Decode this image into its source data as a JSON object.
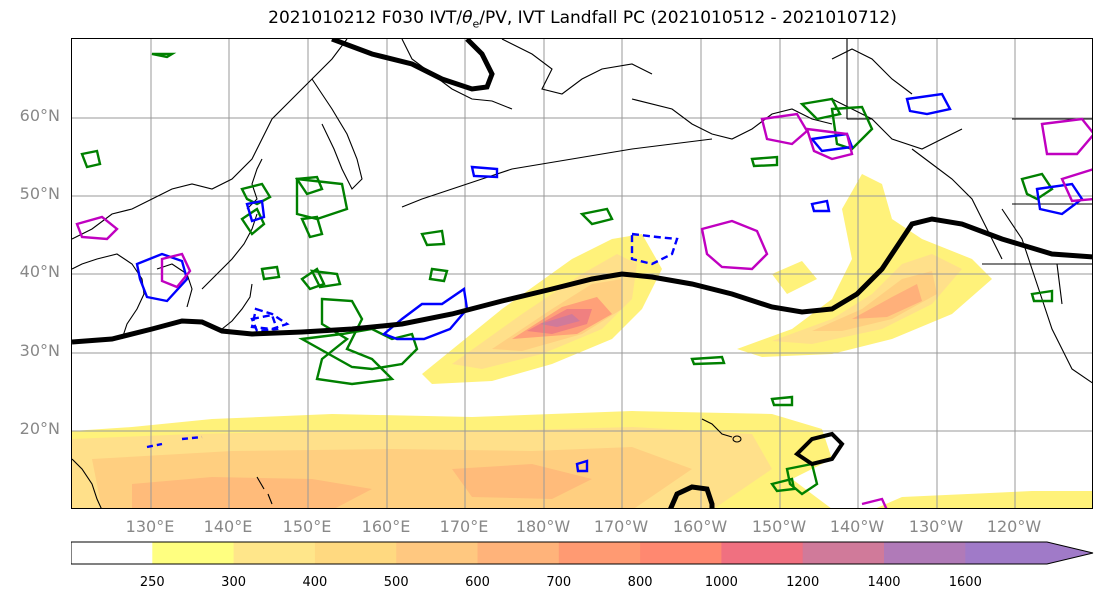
{
  "title": "2021010212 F030 IVT/θe/PV, IVT Landfall PC (2021010512 - 2021010712)",
  "title_parts": {
    "prefix": "2021010212 F030 IVT/",
    "theta": "θ",
    "sub": "e",
    "suffix": "/PV, IVT Landfall PC (2021010512 - 2021010712)"
  },
  "map": {
    "lat_labels": [
      "60°N",
      "50°N",
      "40°N",
      "30°N",
      "20°N"
    ],
    "lon_labels": [
      "130°E",
      "140°E",
      "150°E",
      "160°E",
      "170°E",
      "180°W",
      "170°W",
      "160°W",
      "150°W",
      "140°W",
      "130°W",
      "120°W"
    ],
    "contour_colors": {
      "theta_e_line": "#000000",
      "pv_green": "#008000",
      "pv_blue": "#0000ff",
      "pv_magenta": "#c000c0"
    }
  },
  "colorbar": {
    "levels": [
      "250",
      "300",
      "400",
      "500",
      "600",
      "700",
      "800",
      "1000",
      "1200",
      "1400",
      "1600"
    ],
    "colors": [
      "#ffffff",
      "#ffff80",
      "#ffe68a",
      "#ffd980",
      "#ffc880",
      "#ffb37a",
      "#ff9a72",
      "#ff8870",
      "#f07080",
      "#d07a9a",
      "#b07ab8",
      "#a07ac8"
    ]
  }
}
